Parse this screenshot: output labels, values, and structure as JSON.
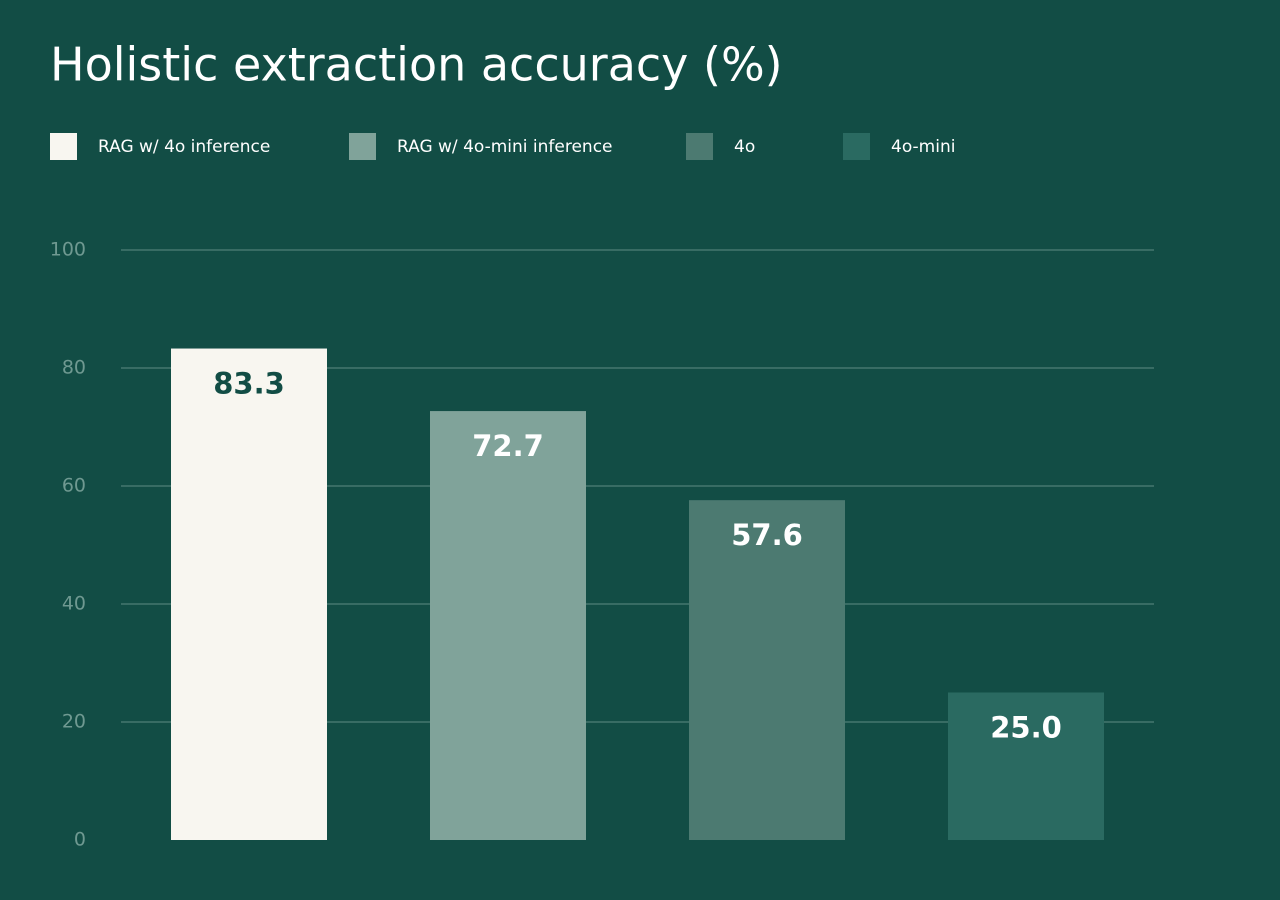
{
  "chart_data": {
    "type": "bar",
    "title": "Holistic extraction accuracy (%)",
    "series": [
      {
        "name": "RAG w/ 4o inference",
        "color": "#f8f6f0",
        "values": [
          83.3
        ],
        "value_labels": [
          "83.3"
        ]
      },
      {
        "name": "RAG w/ 4o-mini inference",
        "color": "#80a39a",
        "values": [
          72.7
        ],
        "value_labels": [
          "72.7"
        ]
      },
      {
        "name": "4o",
        "color": "#4c7a71",
        "values": [
          57.6
        ],
        "value_labels": [
          "57.6"
        ]
      },
      {
        "name": "4o-mini",
        "color": "#2a6a61",
        "values": [
          25.0
        ],
        "value_labels": [
          "25.0"
        ]
      }
    ],
    "ylim": [
      0,
      100
    ],
    "yticks": [
      0,
      20,
      40,
      60,
      80,
      100
    ],
    "grid": true
  }
}
